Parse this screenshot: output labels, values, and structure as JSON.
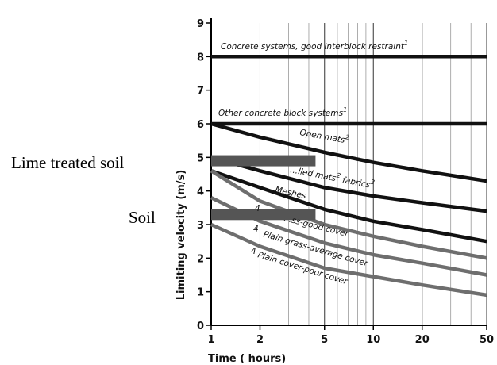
{
  "chart_data": {
    "type": "line",
    "xlabel": "Time ( hours)",
    "ylabel": "Limiting velocity (m/s)",
    "x_scale": "log",
    "xlim": [
      1,
      50
    ],
    "ylim": [
      0,
      9
    ],
    "x_ticks": [
      1,
      2,
      5,
      10,
      20,
      50
    ],
    "y_ticks": [
      0,
      1,
      2,
      3,
      4,
      5,
      6,
      7,
      8,
      9
    ],
    "grid": "vertical minor log lines",
    "series": [
      {
        "label": "Concrete systems, good interblock restraint",
        "sup": "1",
        "color": "#111111",
        "x": [
          1,
          50
        ],
        "y": [
          8.0,
          8.0
        ]
      },
      {
        "label": "Other concrete block systems",
        "sup": "1",
        "color": "#111111",
        "x": [
          1,
          50
        ],
        "y": [
          6.0,
          6.0
        ]
      },
      {
        "label": "Open mats",
        "sup": "2",
        "color": "#111111",
        "x": [
          1,
          2,
          5,
          10,
          20,
          50
        ],
        "y": [
          6.0,
          5.6,
          5.15,
          4.85,
          4.6,
          4.3
        ]
      },
      {
        "label": "...lled mats",
        "sup": "2",
        "label2": "fabrics",
        "sup2": "3",
        "color": "#111111",
        "x": [
          1,
          2,
          5,
          10,
          20,
          50
        ],
        "y": [
          5.0,
          4.6,
          4.1,
          3.85,
          3.65,
          3.4
        ]
      },
      {
        "label": "Meshes",
        "color": "#111111",
        "x": [
          1,
          2,
          5,
          10,
          20,
          50
        ],
        "y": [
          4.6,
          4.1,
          3.45,
          3.1,
          2.85,
          2.5
        ]
      },
      {
        "label": "...ss-good cover",
        "marker": "4",
        "color": "#6e6e6e",
        "x": [
          1,
          2,
          5,
          10,
          20,
          50
        ],
        "y": [
          4.6,
          3.7,
          3.0,
          2.65,
          2.35,
          2.0
        ]
      },
      {
        "label": "Plain grass-average cover",
        "marker": "4",
        "color": "#6e6e6e",
        "x": [
          1,
          2,
          5,
          10,
          20,
          50
        ],
        "y": [
          3.8,
          3.1,
          2.45,
          2.1,
          1.85,
          1.5
        ]
      },
      {
        "label": "Plain cover-poor cover",
        "marker": "4",
        "color": "#6e6e6e",
        "x": [
          1,
          2,
          5,
          10,
          20,
          50
        ],
        "y": [
          3.0,
          2.35,
          1.7,
          1.45,
          1.2,
          0.9
        ]
      }
    ],
    "bands": [
      {
        "label": "Lime treated soil",
        "color": "#555555",
        "x": [
          1,
          4.4
        ],
        "y": 4.9
      },
      {
        "label": "Soil",
        "color": "#555555",
        "x": [
          1,
          4.4
        ],
        "y": 3.3
      }
    ]
  }
}
